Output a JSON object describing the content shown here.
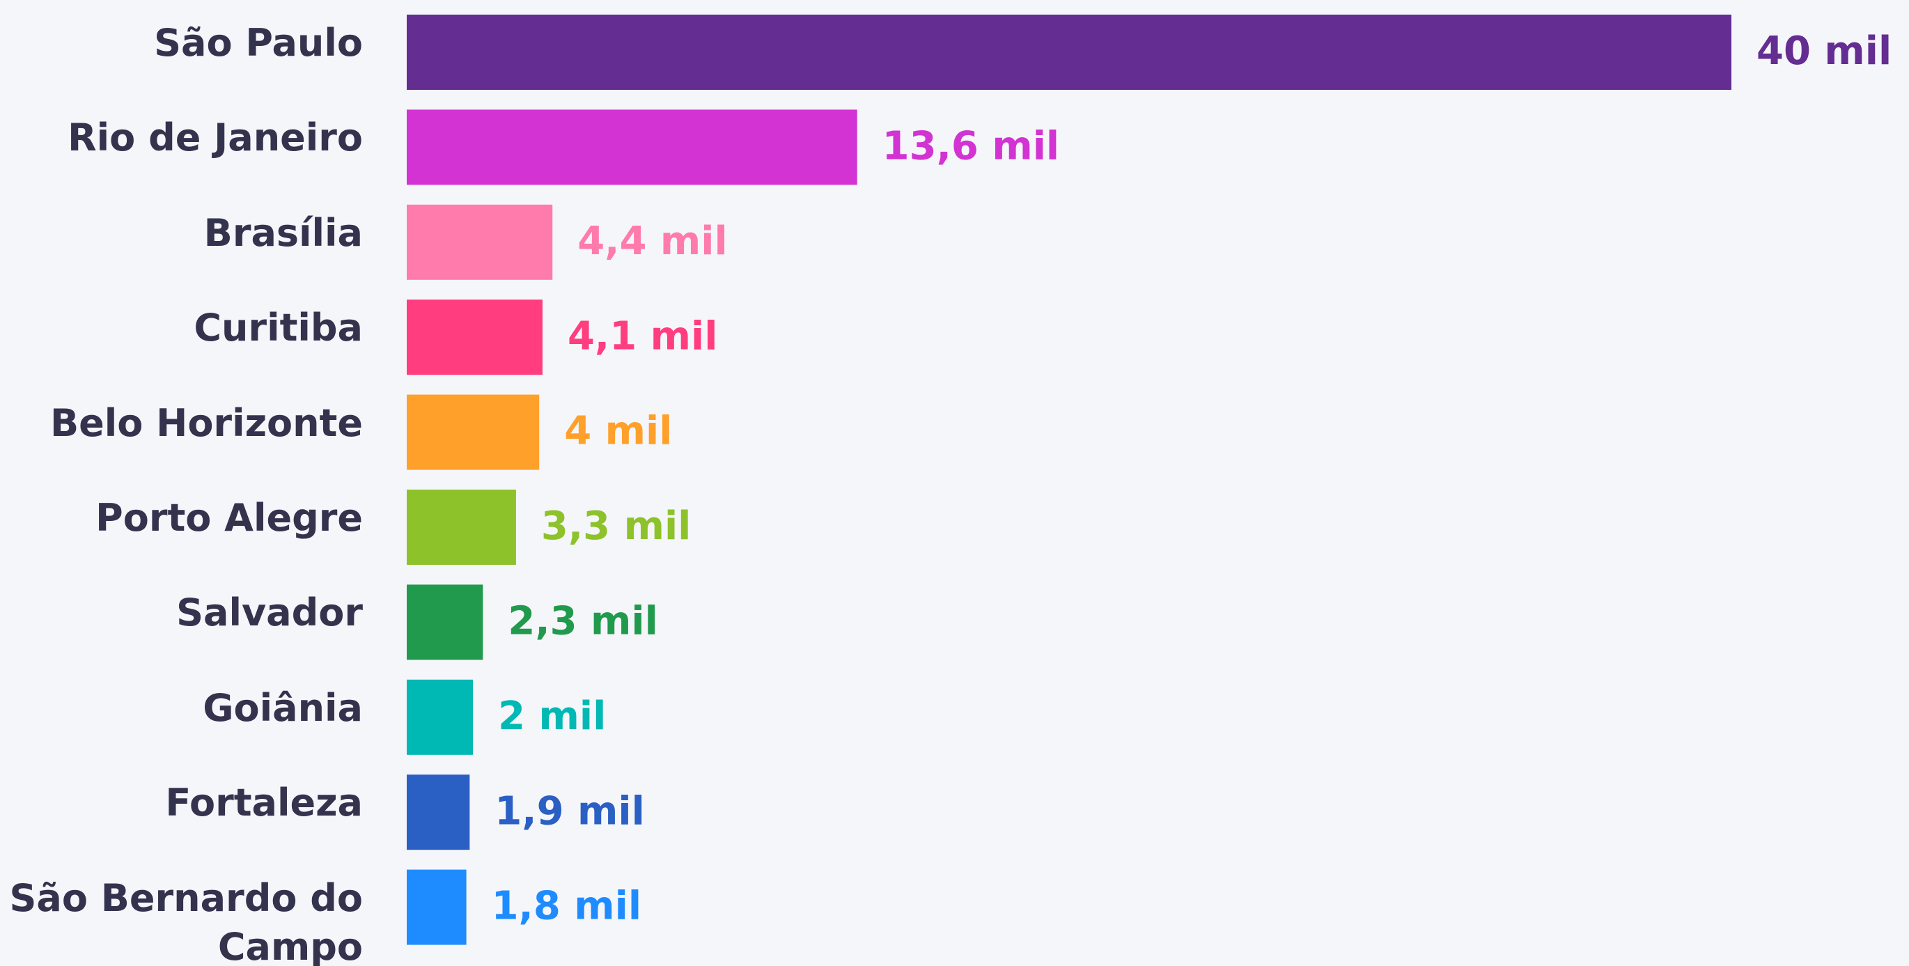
{
  "chart_data": {
    "type": "bar",
    "orientation": "horizontal",
    "categories": [
      "São Paulo",
      "Rio de Janeiro",
      "Brasília",
      "Curitiba",
      "Belo Horizonte",
      "Porto Alegre",
      "Salvador",
      "Goiânia",
      "Fortaleza",
      "São Bernardo do Campo"
    ],
    "values": [
      40,
      13.6,
      4.4,
      4.1,
      4,
      3.3,
      2.3,
      2,
      1.9,
      1.8
    ],
    "value_labels": [
      "40 mil",
      "13,6 mil",
      "4,4 mil",
      "4,1 mil",
      "4 mil",
      "3,3 mil",
      "2,3 mil",
      "2 mil",
      "1,9 mil",
      "1,8 mil"
    ],
    "colors": [
      "#632d91",
      "#d233d2",
      "#ff7bac",
      "#ff3d7f",
      "#ffa02b",
      "#8dc22b",
      "#219a4d",
      "#00b8b4",
      "#2a5fc4",
      "#1e8cff"
    ]
  }
}
